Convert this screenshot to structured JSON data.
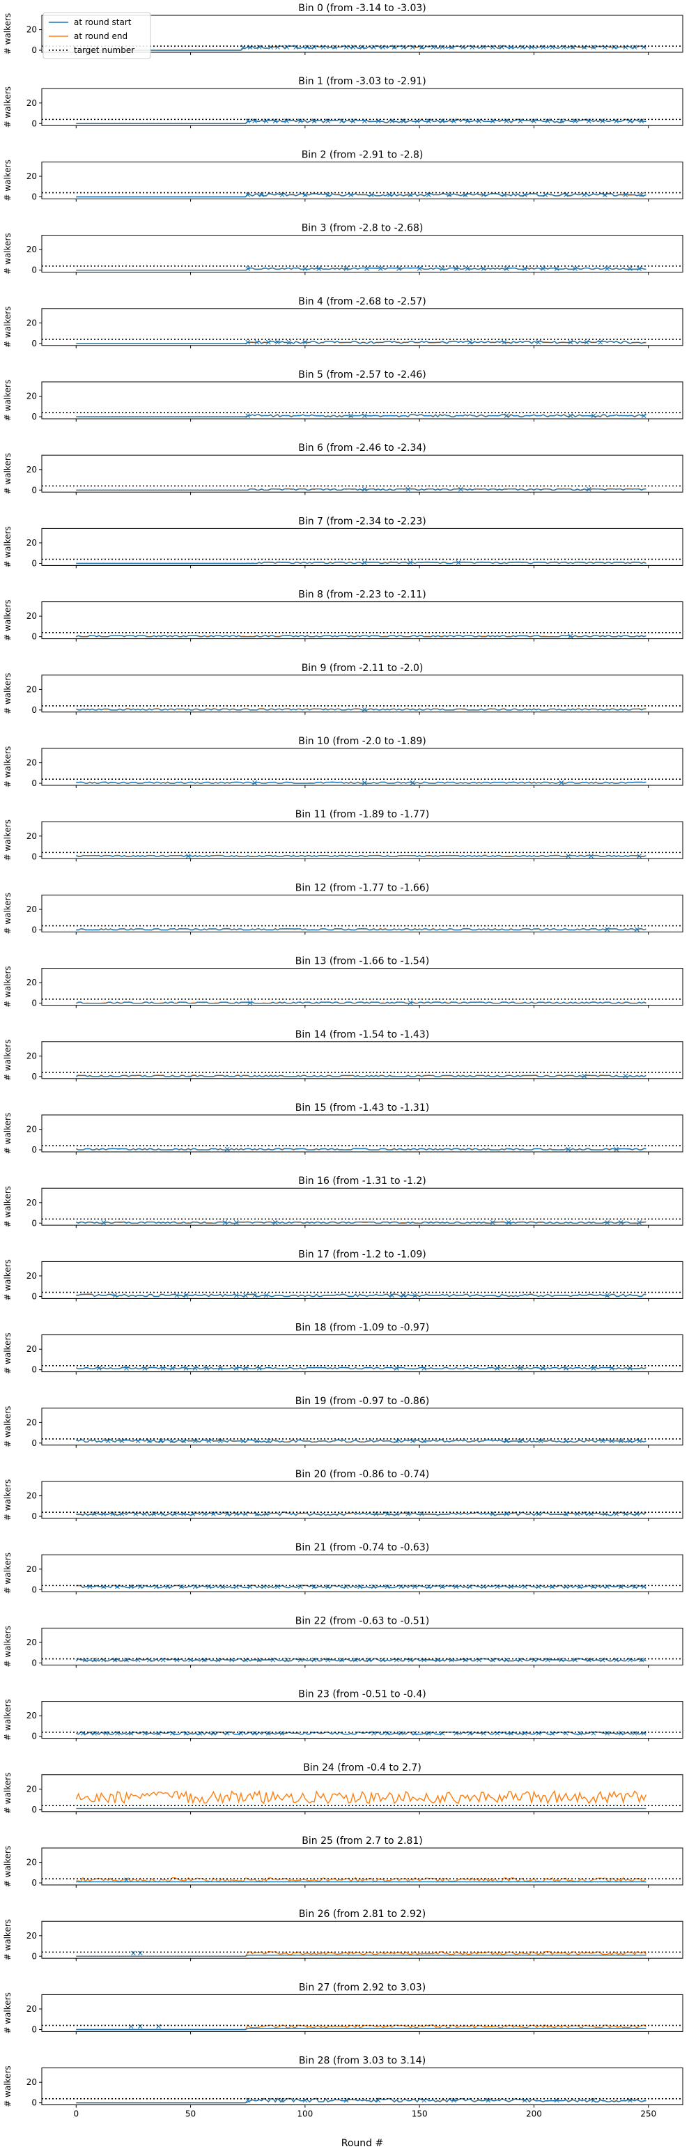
{
  "figure": {
    "xlabel": "Round #",
    "ylabel": "# walkers"
  },
  "legend": {
    "position": "top-left",
    "entries": [
      {
        "label": "at round start",
        "color": "#1f77b4",
        "style": "solid"
      },
      {
        "label": "at round end",
        "color": "#ff7f0e",
        "style": "solid"
      },
      {
        "label": "target number",
        "color": "#000000",
        "style": "dotted"
      }
    ]
  },
  "colors": {
    "start": "#1f77b4",
    "end": "#ff7f0e",
    "target": "#000000"
  },
  "chart_data": {
    "type": "line",
    "xlim": [
      -15,
      265
    ],
    "ylim": [
      -2,
      34
    ],
    "x_ticks": [
      0,
      50,
      100,
      150,
      200,
      250
    ],
    "y_ticks": [
      0,
      20
    ],
    "target_number": 4,
    "xlabel": "Round #",
    "ylabel": "# walkers",
    "panels": [
      {
        "title": "Bin 0 (from -3.14 to -3.03)",
        "active": [
          [
            73,
            249
          ]
        ],
        "level": 3,
        "variation": 1.3,
        "markers": [
          73,
          76,
          80,
          85,
          88,
          92,
          96,
          101,
          104,
          108,
          113,
          118,
          121,
          125,
          130,
          134,
          139,
          143,
          147,
          151,
          156,
          160,
          164,
          169,
          173,
          178,
          182,
          186,
          190,
          195,
          199,
          204,
          208,
          213,
          217,
          222,
          226,
          231,
          235,
          240,
          244,
          248
        ]
      },
      {
        "title": "Bin 1 (from -3.03 to -2.91)",
        "active": [
          [
            75,
            249
          ]
        ],
        "level": 2.5,
        "variation": 1.2,
        "markers": [
          75,
          78,
          83,
          87,
          92,
          98,
          104,
          110,
          116,
          121,
          126,
          132,
          138,
          143,
          149,
          154,
          160,
          165,
          171,
          176,
          182,
          188,
          194,
          200,
          206,
          212,
          218,
          224,
          230,
          236,
          242,
          247
        ]
      },
      {
        "title": "Bin 2 (from -2.91 to -2.8)",
        "active": [
          [
            75,
            249
          ]
        ],
        "level": 2,
        "variation": 1.2,
        "markers": [
          75,
          81,
          90,
          100,
          110,
          120,
          129,
          137,
          146,
          154,
          163,
          170,
          178,
          187,
          196,
          205,
          214,
          222,
          231,
          240,
          247
        ]
      },
      {
        "title": "Bin 3 (from -2.8 to -2.68)",
        "active": [
          [
            75,
            249
          ]
        ],
        "level": 1.5,
        "variation": 1,
        "markers": [
          75,
          100,
          106,
          118,
          127,
          133,
          141,
          150,
          160,
          166,
          171,
          178,
          188,
          196,
          204,
          210,
          218,
          232,
          242,
          246
        ]
      },
      {
        "title": "Bin 4 (from -2.68 to -2.57)",
        "active": [
          [
            75,
            249
          ]
        ],
        "level": 1.2,
        "variation": 0.9,
        "markers": [
          75,
          79,
          84,
          88,
          93,
          100,
          172,
          187,
          202,
          216,
          223,
          229
        ]
      },
      {
        "title": "Bin 5 (from -2.57 to -2.46)",
        "active": [
          [
            75,
            249
          ]
        ],
        "level": 1,
        "variation": 0.8,
        "markers": [
          75,
          120,
          126,
          188,
          216,
          226,
          248
        ]
      },
      {
        "title": "Bin 6 (from -2.46 to -2.34)",
        "active": [
          [
            75,
            249
          ]
        ],
        "level": 0.8,
        "variation": 0.7,
        "markers": [
          126,
          145,
          168,
          224
        ]
      },
      {
        "title": "Bin 7 (from -2.34 to -2.23)",
        "active": [
          [
            75,
            249
          ]
        ],
        "level": 0.8,
        "variation": 0.7,
        "markers": [
          126,
          146,
          167
        ]
      },
      {
        "title": "Bin 8 (from -2.23 to -2.11)",
        "active": [
          [
            0,
            249
          ]
        ],
        "level": 0.5,
        "variation": 0.5,
        "markers": [
          216
        ]
      },
      {
        "title": "Bin 9 (from -2.11 to -2.0)",
        "active": [
          [
            0,
            249
          ]
        ],
        "level": 0.5,
        "variation": 0.5,
        "markers": [
          126
        ]
      },
      {
        "title": "Bin 10 (from -2.0 to -1.89)",
        "active": [
          [
            0,
            249
          ]
        ],
        "level": 0.5,
        "variation": 0.5,
        "markers": [
          78,
          126,
          147,
          212
        ]
      },
      {
        "title": "Bin 11 (from -1.89 to -1.77)",
        "active": [
          [
            0,
            249
          ]
        ],
        "level": 0.5,
        "variation": 0.5,
        "markers": [
          49,
          215,
          225,
          246
        ]
      },
      {
        "title": "Bin 12 (from -1.77 to -1.66)",
        "active": [
          [
            0,
            249
          ]
        ],
        "level": 0.5,
        "variation": 0.5,
        "markers": [
          232,
          245
        ]
      },
      {
        "title": "Bin 13 (from -1.66 to -1.54)",
        "active": [
          [
            0,
            249
          ]
        ],
        "level": 0.5,
        "variation": 0.5,
        "markers": [
          76,
          146
        ]
      },
      {
        "title": "Bin 14 (from -1.54 to -1.43)",
        "active": [
          [
            0,
            249
          ]
        ],
        "level": 0.5,
        "variation": 0.5,
        "markers": [
          222,
          240
        ]
      },
      {
        "title": "Bin 15 (from -1.43 to -1.31)",
        "active": [
          [
            0,
            249
          ]
        ],
        "level": 0.5,
        "variation": 0.5,
        "markers": [
          66,
          215,
          236
        ]
      },
      {
        "title": "Bin 16 (from -1.31 to -1.2)",
        "active": [
          [
            0,
            249
          ]
        ],
        "level": 0.6,
        "variation": 0.6,
        "markers": [
          12,
          65,
          70,
          87,
          182,
          189,
          232,
          238,
          246
        ]
      },
      {
        "title": "Bin 17 (from -1.2 to -1.09)",
        "active": [
          [
            0,
            249
          ]
        ],
        "level": 1,
        "variation": 0.9,
        "markers": [
          17,
          44,
          48,
          70,
          74,
          78,
          83,
          138,
          143,
          148,
          232
        ]
      },
      {
        "title": "Bin 18 (from -1.09 to -0.97)",
        "active": [
          [
            0,
            249
          ]
        ],
        "level": 1.5,
        "variation": 1,
        "markers": [
          10,
          22,
          30,
          38,
          42,
          48,
          52,
          57,
          63,
          70,
          74,
          80,
          140,
          152,
          184,
          194,
          204,
          214,
          226,
          234,
          242
        ]
      },
      {
        "title": "Bin 19 (from -0.97 to -0.86)",
        "active": [
          [
            0,
            249
          ]
        ],
        "level": 2,
        "variation": 1.2,
        "markers": [
          14,
          20,
          27,
          32,
          37,
          42,
          47,
          52,
          58,
          63,
          73,
          79,
          84,
          140,
          147,
          152,
          188,
          194,
          203,
          214,
          230,
          234,
          238,
          242,
          246
        ]
      },
      {
        "title": "Bin 20 (from -0.86 to -0.74)",
        "active": [
          [
            0,
            249
          ]
        ],
        "level": 2.5,
        "variation": 1.3,
        "markers": [
          8,
          12,
          16,
          20,
          26,
          30,
          34,
          38,
          43,
          47,
          51,
          56,
          60,
          66,
          70,
          74,
          79,
          83,
          131,
          136,
          140,
          145,
          151,
          182,
          188,
          202,
          214,
          219,
          225,
          231,
          236,
          240,
          245
        ]
      },
      {
        "title": "Bin 21 (from -0.74 to -0.63)",
        "active": [
          [
            0,
            249
          ]
        ],
        "level": 3,
        "variation": 1.3,
        "markers": [
          6,
          12,
          18,
          24,
          28,
          35,
          40,
          46,
          52,
          58,
          64,
          70,
          76,
          82,
          88,
          98,
          104,
          110,
          118,
          124,
          130,
          136,
          142,
          148,
          154,
          160,
          166,
          172,
          178,
          184,
          190,
          196,
          202,
          208,
          214,
          220,
          226,
          232,
          238,
          244,
          248
        ]
      },
      {
        "title": "Bin 22 (from -0.63 to -0.51)",
        "active": [
          [
            0,
            249
          ]
        ],
        "level": 3,
        "variation": 1.4,
        "markers": [
          4,
          8,
          12,
          17,
          22,
          27,
          32,
          38,
          44,
          50,
          56,
          62,
          68,
          74,
          80,
          86,
          92,
          98,
          104,
          110,
          116,
          122,
          128,
          134,
          140,
          146,
          152,
          158,
          164,
          170,
          176,
          182,
          188,
          194,
          200,
          206,
          212,
          218,
          224,
          230,
          236,
          242,
          247
        ]
      },
      {
        "title": "Bin 23 (from -0.51 to -0.4)",
        "active": [
          [
            0,
            249
          ]
        ],
        "level": 3,
        "variation": 1.5,
        "markers": [
          3,
          8,
          13,
          18,
          24,
          30,
          36,
          42,
          48,
          54,
          60,
          66,
          72,
          78,
          84,
          90,
          130,
          136,
          142,
          148,
          154,
          160,
          166,
          172,
          178,
          184,
          190,
          196,
          202,
          208,
          214,
          220,
          226,
          232,
          238,
          244,
          248
        ]
      },
      {
        "title": "Bin 24 (from -0.4 to 2.7)",
        "active": [
          [
            0,
            249
          ]
        ],
        "level": 12,
        "variation": 6,
        "markers": [],
        "orange_dominant": true
      },
      {
        "title": "Bin 25 (from 2.7 to 2.81)",
        "active": [
          [
            0,
            249
          ]
        ],
        "level": 3,
        "variation": 2,
        "markers": [
          22
        ],
        "orange_dominant": true
      },
      {
        "title": "Bin 26 (from 2.81 to 2.92)",
        "active": [
          [
            75,
            249
          ]
        ],
        "level": 3,
        "variation": 1.5,
        "markers": [
          25,
          28
        ],
        "orange_dominant": true
      },
      {
        "title": "Bin 27 (from 2.92 to 3.03)",
        "active": [
          [
            75,
            249
          ]
        ],
        "level": 3,
        "variation": 1.5,
        "markers": [
          24,
          28,
          36
        ],
        "orange_dominant": true
      },
      {
        "title": "Bin 28 (from 3.03 to 3.14)",
        "active": [
          [
            75,
            249
          ]
        ],
        "level": 2.5,
        "variation": 1.4,
        "markers": [
          75,
          90,
          100,
          118,
          132,
          152,
          165,
          180,
          196,
          210,
          226,
          242
        ]
      }
    ]
  }
}
